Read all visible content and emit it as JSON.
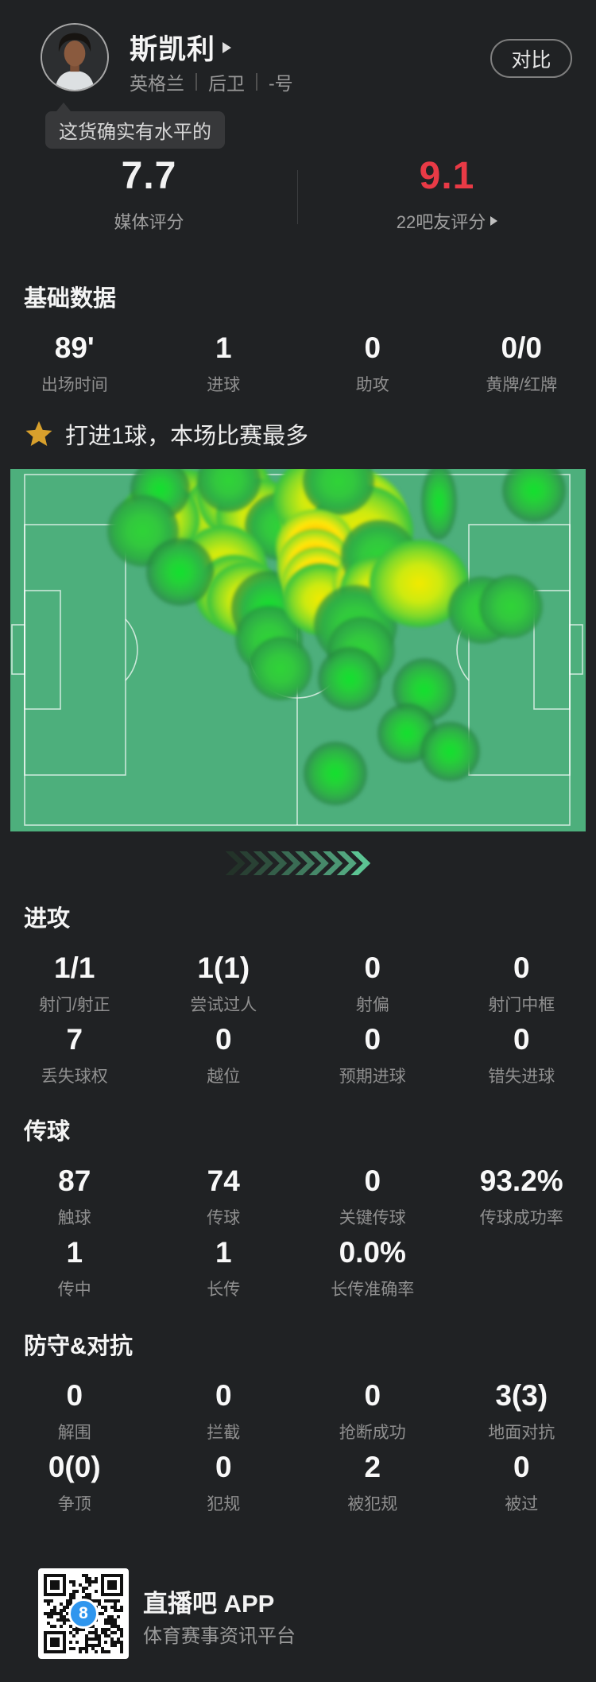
{
  "theme": {
    "bg": "#202224",
    "bubble_bg": "#37383a",
    "text_primary": "#f2f2f2",
    "text_secondary": "#8f8f8f",
    "accent_red": "#e93a46",
    "star_gold": "#d8a02c",
    "pitch_green": "#4daf7c",
    "pitch_line": "rgba(255,255,255,0.7)",
    "qr_badge_blue": "#2f96ee"
  },
  "header": {
    "player_name": "斯凯利",
    "meta": [
      "英格兰",
      "后卫",
      "-号"
    ],
    "compare_label": "对比",
    "tooltip_text": "这货确实有水平的"
  },
  "ratings": [
    {
      "value": "7.7",
      "label": "媒体评分"
    },
    {
      "value": "9.1",
      "label": "22吧友评分"
    }
  ],
  "highlight": {
    "icon": "star-icon",
    "text": "打进1球，本场比赛最多"
  },
  "sections": [
    {
      "id": "basic",
      "title": "基础数据",
      "rows": [
        [
          {
            "value": "89'",
            "label": "出场时间"
          },
          {
            "value": "1",
            "label": "进球"
          },
          {
            "value": "0",
            "label": "助攻"
          },
          {
            "value": "0/0",
            "label": "黄牌/红牌"
          }
        ]
      ]
    },
    {
      "id": "attack",
      "title": "进攻",
      "rows": [
        [
          {
            "value": "1/1",
            "label": "射门/射正"
          },
          {
            "value": "1(1)",
            "label": "尝试过人"
          },
          {
            "value": "0",
            "label": "射偏"
          },
          {
            "value": "0",
            "label": "射门中框"
          }
        ],
        [
          {
            "value": "7",
            "label": "丢失球权"
          },
          {
            "value": "0",
            "label": "越位"
          },
          {
            "value": "0",
            "label": "预期进球"
          },
          {
            "value": "0",
            "label": "错失进球"
          }
        ]
      ]
    },
    {
      "id": "passing",
      "title": "传球",
      "rows": [
        [
          {
            "value": "87",
            "label": "触球"
          },
          {
            "value": "74",
            "label": "传球"
          },
          {
            "value": "0",
            "label": "关键传球"
          },
          {
            "value": "93.2%",
            "label": "传球成功率"
          }
        ],
        [
          {
            "value": "1",
            "label": "传中"
          },
          {
            "value": "1",
            "label": "长传"
          },
          {
            "value": "0.0%",
            "label": "长传准确率"
          }
        ]
      ]
    },
    {
      "id": "defense",
      "title": "防守&对抗",
      "rows": [
        [
          {
            "value": "0",
            "label": "解围"
          },
          {
            "value": "0",
            "label": "拦截"
          },
          {
            "value": "0",
            "label": "抢断成功"
          },
          {
            "value": "3(3)",
            "label": "地面对抗"
          }
        ],
        [
          {
            "value": "0(0)",
            "label": "争顶"
          },
          {
            "value": "0",
            "label": "犯规"
          },
          {
            "value": "2",
            "label": "被犯规"
          },
          {
            "value": "0",
            "label": "被过"
          }
        ]
      ]
    }
  ],
  "heatmap": {
    "attack_direction": "right",
    "blobs": [
      [
        34.5,
        15.5,
        150,
        120,
        "red"
      ],
      [
        30,
        12,
        130,
        110,
        "yellow"
      ],
      [
        38,
        14,
        130,
        110,
        "yellow"
      ],
      [
        26,
        14,
        100,
        95,
        "yellow"
      ],
      [
        39,
        7,
        95,
        110,
        "yellow"
      ],
      [
        43,
        13,
        105,
        95,
        "yellow"
      ],
      [
        47,
        16,
        90,
        85,
        "green"
      ],
      [
        26,
        5.5,
        75,
        75,
        "green2"
      ],
      [
        23,
        17,
        90,
        90,
        "green"
      ],
      [
        38,
        3,
        80,
        80,
        "green"
      ],
      [
        37,
        27,
        110,
        105,
        "yellow"
      ],
      [
        39,
        34,
        100,
        95,
        "yellow"
      ],
      [
        29.5,
        28.5,
        85,
        85,
        "green2"
      ],
      [
        41,
        36,
        100,
        95,
        "yellow"
      ],
      [
        45,
        38.5,
        95,
        95,
        "green2"
      ],
      [
        45,
        47,
        85,
        85,
        "green"
      ],
      [
        47,
        55,
        80,
        80,
        "green"
      ],
      [
        58,
        13.5,
        160,
        130,
        "red"
      ],
      [
        54,
        8.5,
        120,
        110,
        "yellow"
      ],
      [
        61,
        17,
        130,
        115,
        "yellow"
      ],
      [
        57,
        3.5,
        90,
        85,
        "green"
      ],
      [
        53,
        21.5,
        100,
        95,
        "orange"
      ],
      [
        53,
        27,
        95,
        95,
        "orange"
      ],
      [
        53.5,
        31.5,
        90,
        90,
        "orange"
      ],
      [
        54,
        36,
        95,
        90,
        "yellow"
      ],
      [
        62,
        32,
        85,
        85,
        "orange"
      ],
      [
        64,
        24,
        95,
        90,
        "green"
      ],
      [
        63.5,
        33.5,
        90,
        85,
        "yellow"
      ],
      [
        60,
        43,
        105,
        100,
        "green"
      ],
      [
        61,
        50,
        85,
        85,
        "green"
      ],
      [
        59,
        58,
        80,
        80,
        "green2"
      ],
      [
        71,
        31.5,
        125,
        110,
        "yellow"
      ],
      [
        74.5,
        9,
        45,
        95,
        "green2"
      ],
      [
        91,
        6,
        80,
        80,
        "green2"
      ],
      [
        82,
        39,
        85,
        85,
        "green"
      ],
      [
        87,
        38,
        80,
        80,
        "green"
      ],
      [
        72,
        61,
        80,
        80,
        "green2"
      ],
      [
        69,
        73,
        75,
        75,
        "green2"
      ],
      [
        76.5,
        78,
        75,
        75,
        "green2"
      ],
      [
        56.5,
        84,
        80,
        80,
        "green2"
      ]
    ]
  },
  "chevrons": [
    "#233329",
    "#294134",
    "#2f4f3e",
    "#345e49",
    "#3a6c54",
    "#407a5e",
    "#468869",
    "#4c9674",
    "#52a57e",
    "#5cc493"
  ],
  "footer": {
    "app_name": "直播吧 APP",
    "tagline": "体育赛事资讯平台",
    "qr_badge": "8"
  }
}
